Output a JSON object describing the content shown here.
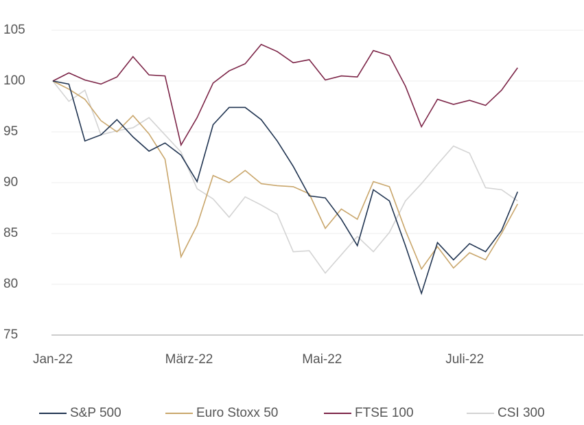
{
  "chart_data": {
    "type": "line",
    "x": [
      0,
      1,
      2,
      3,
      4,
      5,
      6,
      7,
      8,
      9,
      10,
      11,
      12,
      13,
      14,
      15,
      16,
      17,
      18,
      19,
      20,
      21,
      22,
      23,
      24,
      25,
      26,
      27,
      28,
      29
    ],
    "xlim": [
      0,
      33.1
    ],
    "xticks": [
      {
        "value": 0,
        "label": "Jan-22"
      },
      {
        "value": 8.5,
        "label": "März-22"
      },
      {
        "value": 16.8,
        "label": "Mai-22"
      },
      {
        "value": 25.7,
        "label": "Juli-22"
      }
    ],
    "ylim": [
      75,
      105
    ],
    "yticks": [
      75,
      80,
      85,
      90,
      95,
      100,
      105
    ],
    "grid": true,
    "legend": "bottom",
    "series": [
      {
        "name": "S&P 500",
        "color": "#1f3350",
        "values": [
          100,
          99.7,
          94.1,
          94.7,
          96.2,
          94.5,
          93.1,
          93.9,
          92.7,
          90.1,
          95.7,
          97.4,
          97.4,
          96.2,
          94.1,
          91.6,
          88.7,
          88.5,
          86.4,
          83.8,
          89.3,
          88.2,
          83.8,
          79.1,
          84.1,
          82.4,
          84.0,
          83.2,
          85.3,
          89.1
        ]
      },
      {
        "name": "Euro Stoxx 50",
        "color": "#c9a66b",
        "values": [
          100,
          99.2,
          98.2,
          96.1,
          95.0,
          96.6,
          94.8,
          92.3,
          82.7,
          85.8,
          90.7,
          90.0,
          91.2,
          89.9,
          89.7,
          89.6,
          88.9,
          85.5,
          87.4,
          86.4,
          90.1,
          89.6,
          85.3,
          81.5,
          83.7,
          81.6,
          83.1,
          82.4,
          85.0,
          87.9
        ]
      },
      {
        "name": "FTSE 100",
        "color": "#7b2346",
        "values": [
          100,
          100.8,
          100.1,
          99.7,
          100.4,
          102.4,
          100.6,
          100.5,
          93.7,
          96.4,
          99.8,
          101.0,
          101.7,
          103.6,
          102.9,
          101.8,
          102.1,
          100.1,
          100.5,
          100.4,
          103.0,
          102.5,
          99.5,
          95.5,
          98.2,
          97.7,
          98.1,
          97.6,
          99.1,
          101.3
        ]
      },
      {
        "name": "CSI 300",
        "color": "#d3d3d3",
        "values": [
          100,
          98.0,
          99.1,
          94.7,
          95.1,
          95.4,
          96.4,
          94.7,
          93.0,
          89.4,
          88.4,
          86.6,
          88.6,
          87.8,
          86.9,
          83.2,
          83.3,
          81.1,
          82.9,
          84.7,
          83.2,
          85.1,
          88.2,
          89.9,
          91.8,
          93.6,
          92.9,
          89.5,
          89.3,
          88.2
        ]
      }
    ]
  }
}
